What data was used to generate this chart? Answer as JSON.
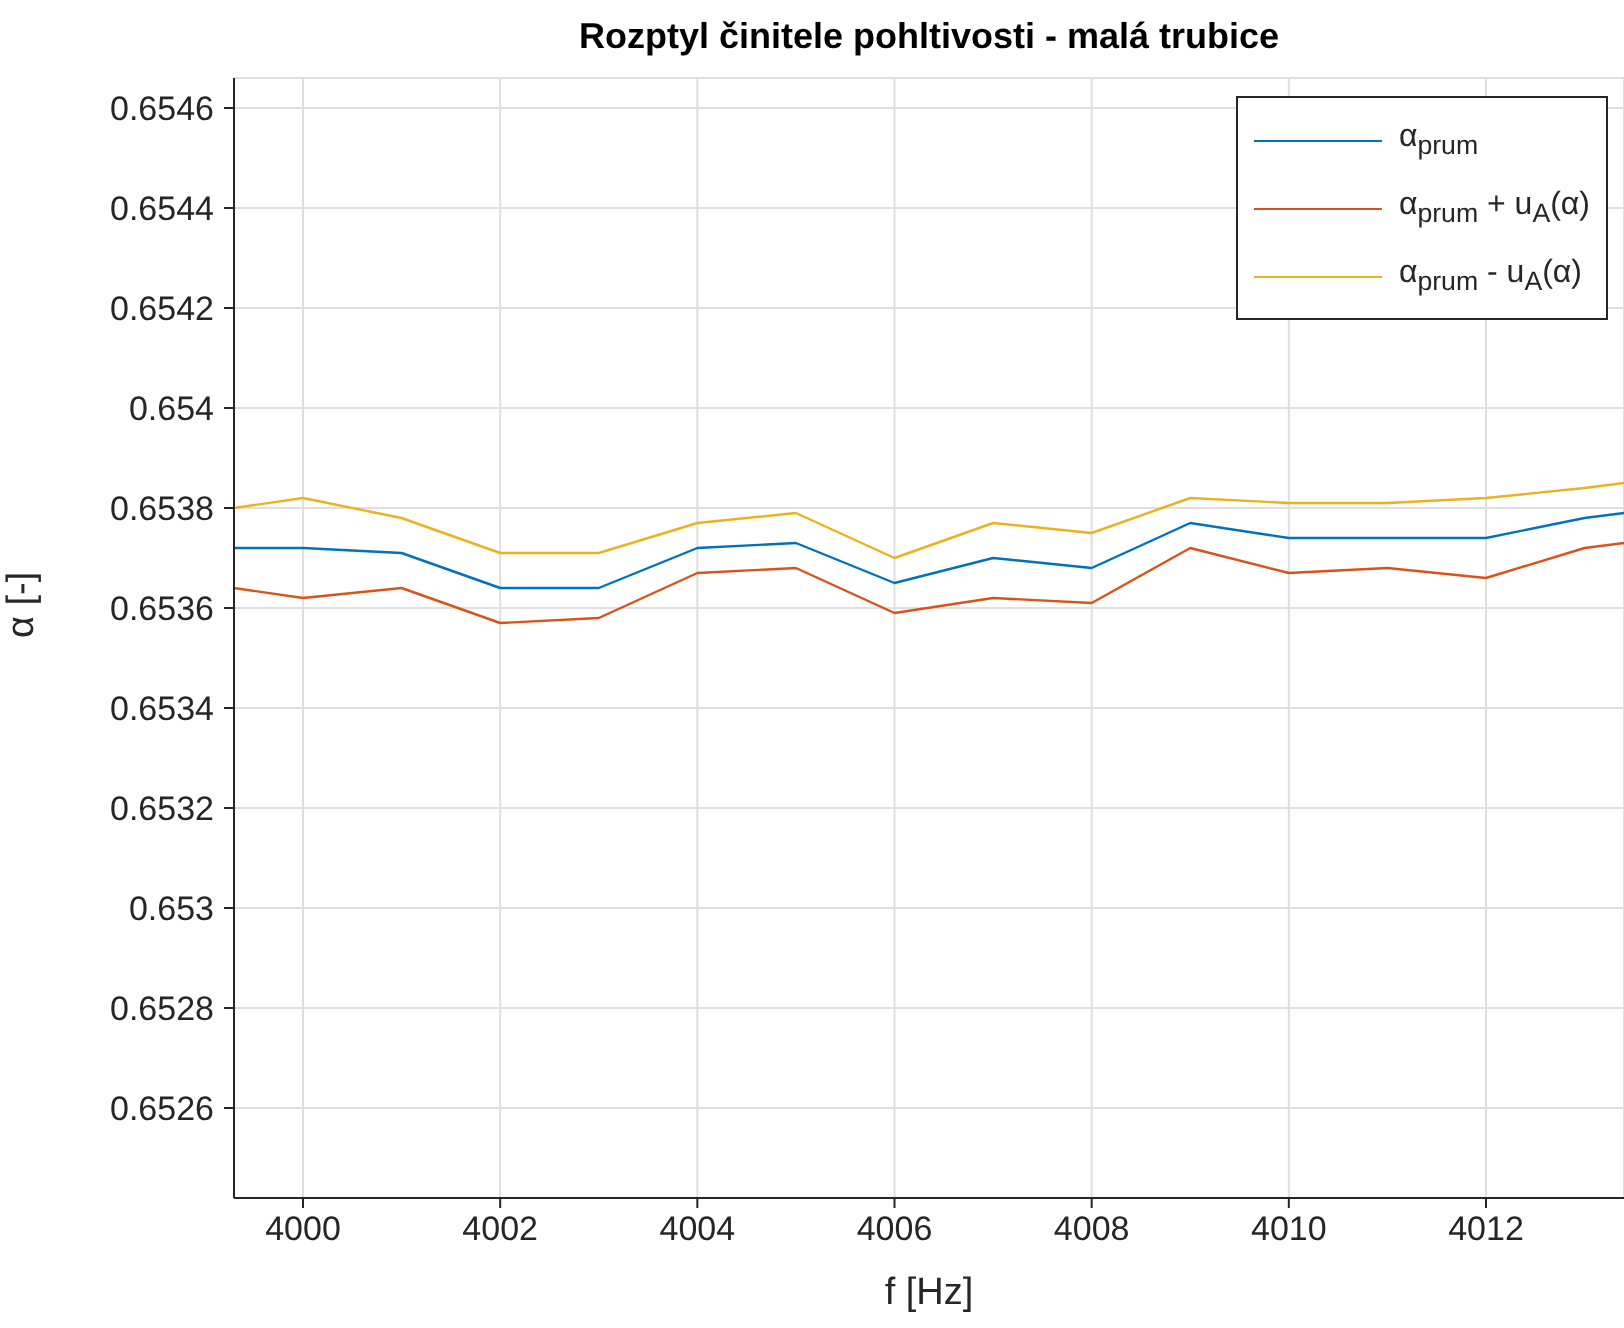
{
  "chart_data": {
    "type": "line",
    "title": "Rozptyl činitele pohltivosti - malá trubice",
    "xlabel": "f [Hz]",
    "ylabel": "α [-]",
    "x": [
      3999.3,
      4000,
      4001,
      4002,
      4003,
      4004,
      4005,
      4006,
      4007,
      4008,
      4009,
      4010,
      4011,
      4012,
      4013,
      4013.4
    ],
    "series": [
      {
        "name": "α$_{prum}$",
        "color": "#0072bd",
        "values": [
          0.65372,
          0.65372,
          0.65371,
          0.65364,
          0.65364,
          0.65372,
          0.65373,
          0.65365,
          0.6537,
          0.65368,
          0.65377,
          0.65374,
          0.65374,
          0.65374,
          0.65378,
          0.65379
        ]
      },
      {
        "name": "α$_{prum}$ + u$_{A}$(α)",
        "color": "#d95319",
        "values": [
          0.65364,
          0.65362,
          0.65364,
          0.65357,
          0.65358,
          0.65367,
          0.65368,
          0.65359,
          0.65362,
          0.65361,
          0.65372,
          0.65367,
          0.65368,
          0.65366,
          0.65372,
          0.65373
        ]
      },
      {
        "name": "α$_{prum}$ - u$_{A}$(α)",
        "color": "#edb120",
        "values": [
          0.6538,
          0.65382,
          0.65378,
          0.65371,
          0.65371,
          0.65377,
          0.65379,
          0.6537,
          0.65377,
          0.65375,
          0.65382,
          0.65381,
          0.65381,
          0.65382,
          0.65384,
          0.65385
        ]
      }
    ],
    "xlim": [
      3999.3,
      4013.4
    ],
    "xticks": [
      4000,
      4002,
      4004,
      4006,
      4008,
      4010,
      4012
    ],
    "ylim": [
      0.65242,
      0.65466
    ],
    "yticks": [
      0.6526,
      0.6528,
      0.653,
      0.6532,
      0.6534,
      0.6536,
      0.6538,
      0.654,
      0.6542,
      0.6544,
      0.6546
    ],
    "grid": true,
    "legend": "top right"
  }
}
